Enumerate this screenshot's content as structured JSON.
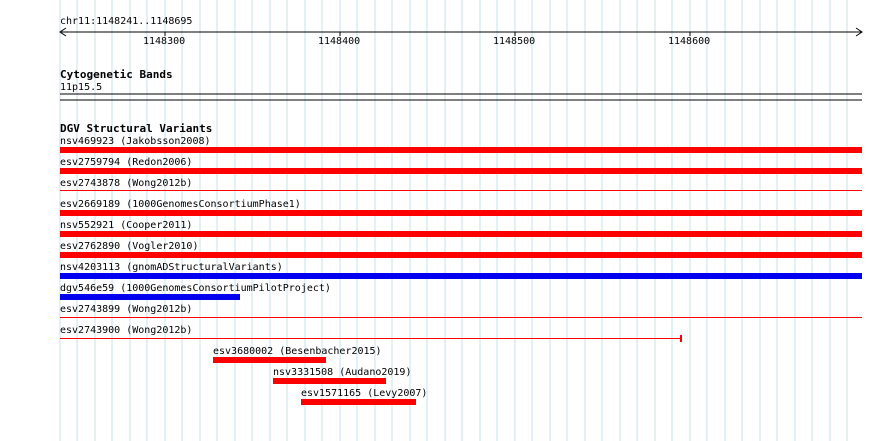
{
  "region": {
    "label": "chr11:1148241..1148695"
  },
  "ruler": {
    "ticks": [
      "1148300",
      "1148400",
      "1148500",
      "1148600"
    ]
  },
  "cytobands": {
    "title": "Cytogenetic Bands",
    "band_label": "11p15.5"
  },
  "dgv": {
    "title": "DGV Structural Variants",
    "features": [
      {
        "label": "nsv469923 (Jakobsson2008)",
        "color": "#ff0000",
        "style": "thick"
      },
      {
        "label": "esv2759794 (Redon2006)",
        "color": "#ff0000",
        "style": "thick"
      },
      {
        "label": "esv2743878 (Wong2012b)",
        "color": "#ff0000",
        "style": "thin"
      },
      {
        "label": "esv2669189 (1000GenomesConsortiumPhase1)",
        "color": "#ff0000",
        "style": "thick"
      },
      {
        "label": "nsv552921 (Cooper2011)",
        "color": "#ff0000",
        "style": "thick"
      },
      {
        "label": "esv2762890 (Vogler2010)",
        "color": "#ff0000",
        "style": "thick"
      },
      {
        "label": "nsv4203113 (gnomADStructuralVariants)",
        "color": "#0000ee",
        "style": "thick"
      },
      {
        "label": "dgv546e59 (1000GenomesConsortiumPilotProject)",
        "color": "#0000ee",
        "style": "thick"
      },
      {
        "label": "esv2743899 (Wong2012b)",
        "color": "#ff0000",
        "style": "thin"
      },
      {
        "label": "esv2743900 (Wong2012b)",
        "color": "#ff0000",
        "style": "thin"
      },
      {
        "label": "esv3680002 (Besenbacher2015)",
        "color": "#ff0000",
        "style": "thick"
      },
      {
        "label": "nsv3331508 (Audano2019)",
        "color": "#ff0000",
        "style": "thick"
      },
      {
        "label": "esv1571165 (Levy2007)",
        "color": "#ff0000",
        "style": "thick"
      }
    ]
  }
}
